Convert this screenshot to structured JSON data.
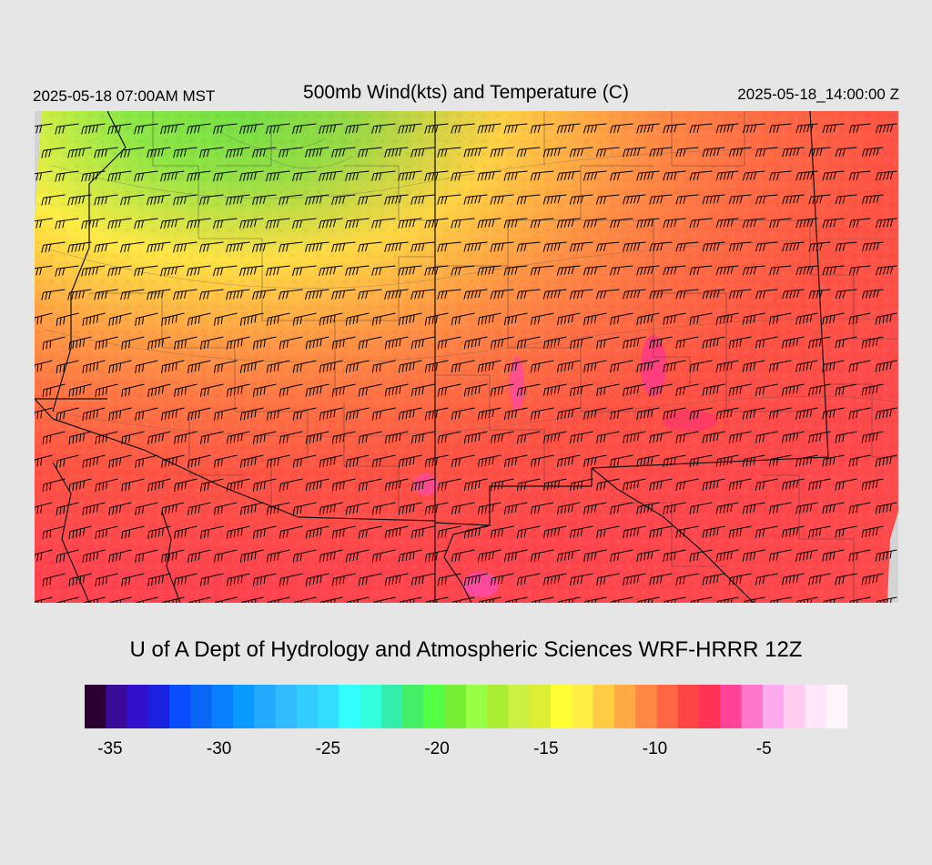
{
  "header": {
    "local_time": "2025-05-18 07:00AM MST",
    "title": "500mb Wind(kts) and Temperature (C)",
    "valid_time": "2025-05-18_14:00:00 Z"
  },
  "credit": "U of A Dept of Hydrology and Atmospheric Sciences WRF-HRRR 12Z",
  "colorbar": {
    "colors": [
      "#2a0033",
      "#3a0a99",
      "#3311cc",
      "#1a22e0",
      "#0a4dff",
      "#0a66f5",
      "#0a7fff",
      "#0a99ff",
      "#22aaff",
      "#33bbff",
      "#33ccff",
      "#33ddff",
      "#33ffff",
      "#33ffdd",
      "#33eeaa",
      "#44ee66",
      "#55ff44",
      "#77ee33",
      "#99ff44",
      "#aaee33",
      "#ccf044",
      "#ddee33",
      "#ffff33",
      "#ffee44",
      "#ffcc44",
      "#ffaa44",
      "#ff8844",
      "#ff6644",
      "#ff4444",
      "#ff3355",
      "#ff4499",
      "#ff77cc",
      "#ffaaee",
      "#ffccf0",
      "#ffe6f8",
      "#fff5fc"
    ],
    "ticks": [
      {
        "label": "-35",
        "pos": 0.0333
      },
      {
        "label": "-30",
        "pos": 0.1762
      },
      {
        "label": "-25",
        "pos": 0.319
      },
      {
        "label": "-20",
        "pos": 0.4619
      },
      {
        "label": "-15",
        "pos": 0.6048
      },
      {
        "label": "-10",
        "pos": 0.7476
      },
      {
        "label": "-5",
        "pos": 0.8905
      }
    ]
  }
}
